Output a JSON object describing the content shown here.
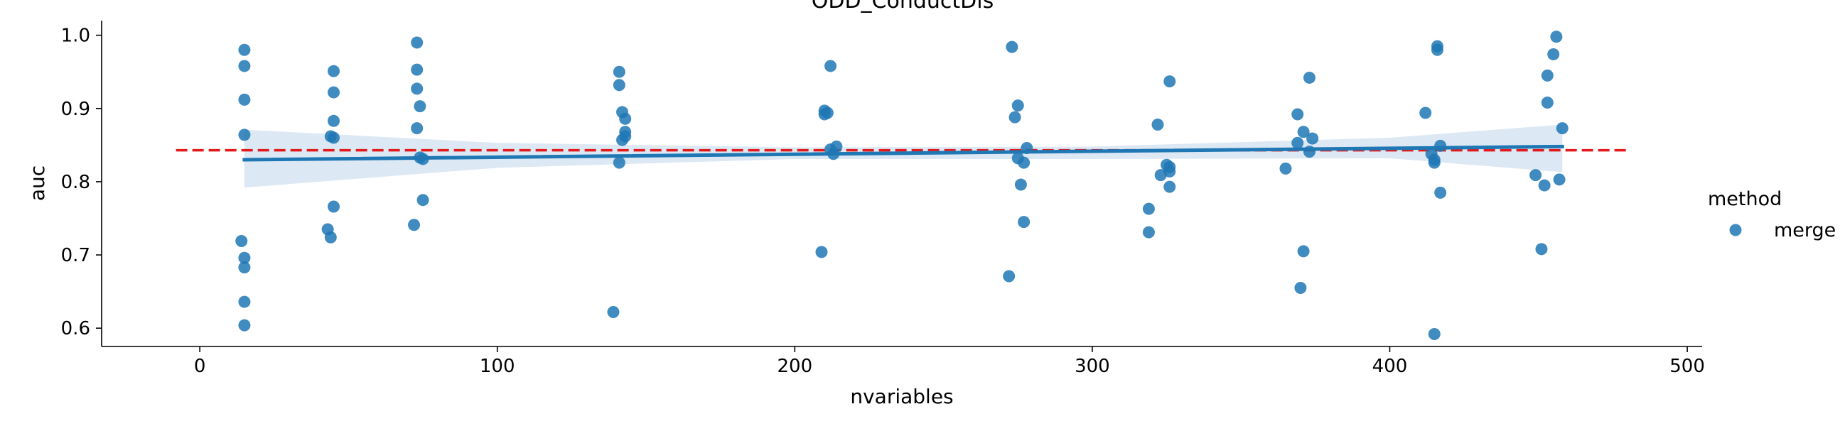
{
  "chart_data": {
    "type": "scatter",
    "title": "ODD_ConductDis",
    "xlabel": "nvariables",
    "ylabel": "auc",
    "xlim": [
      -33,
      505
    ],
    "ylim": [
      0.575,
      1.02
    ],
    "xticks": [
      0,
      100,
      200,
      300,
      400,
      500
    ],
    "yticks": [
      0.6,
      0.7,
      0.8,
      0.9,
      1.0
    ],
    "xtick_labels": [
      "0",
      "100",
      "200",
      "300",
      "400",
      "500"
    ],
    "ytick_labels": [
      "0.6",
      "0.7",
      "0.8",
      "0.9",
      "1.0"
    ],
    "grid": false,
    "legend": {
      "title": "method",
      "placement": "right",
      "entries": [
        "merge"
      ]
    },
    "colors": {
      "points": "#1f77b4",
      "fit": "#1f77b4",
      "band": "#c5d8ec",
      "reference": "#e31a1c"
    },
    "series": [
      {
        "name": "merge",
        "points": [
          [
            15,
            0.98
          ],
          [
            15,
            0.958
          ],
          [
            15,
            0.912
          ],
          [
            15,
            0.864
          ],
          [
            14,
            0.719
          ],
          [
            15,
            0.696
          ],
          [
            15,
            0.683
          ],
          [
            15,
            0.636
          ],
          [
            15,
            0.604
          ],
          [
            45,
            0.951
          ],
          [
            45,
            0.922
          ],
          [
            45,
            0.883
          ],
          [
            44,
            0.862
          ],
          [
            45,
            0.86
          ],
          [
            45,
            0.766
          ],
          [
            43,
            0.735
          ],
          [
            44,
            0.724
          ],
          [
            73,
            0.99
          ],
          [
            73,
            0.953
          ],
          [
            73,
            0.927
          ],
          [
            74,
            0.903
          ],
          [
            73,
            0.873
          ],
          [
            74,
            0.833
          ],
          [
            75,
            0.831
          ],
          [
            75,
            0.775
          ],
          [
            72,
            0.741
          ],
          [
            141,
            0.95
          ],
          [
            141,
            0.932
          ],
          [
            142,
            0.895
          ],
          [
            143,
            0.886
          ],
          [
            143,
            0.868
          ],
          [
            142,
            0.857
          ],
          [
            143,
            0.862
          ],
          [
            141,
            0.826
          ],
          [
            139,
            0.622
          ],
          [
            212,
            0.958
          ],
          [
            210,
            0.897
          ],
          [
            210,
            0.892
          ],
          [
            211,
            0.894
          ],
          [
            214,
            0.848
          ],
          [
            212,
            0.844
          ],
          [
            213,
            0.838
          ],
          [
            209,
            0.704
          ],
          [
            273,
            0.984
          ],
          [
            275,
            0.904
          ],
          [
            274,
            0.888
          ],
          [
            278,
            0.846
          ],
          [
            275,
            0.832
          ],
          [
            277,
            0.826
          ],
          [
            276,
            0.796
          ],
          [
            277,
            0.745
          ],
          [
            272,
            0.671
          ],
          [
            326,
            0.937
          ],
          [
            322,
            0.878
          ],
          [
            325,
            0.823
          ],
          [
            326,
            0.82
          ],
          [
            326,
            0.814
          ],
          [
            323,
            0.809
          ],
          [
            326,
            0.793
          ],
          [
            319,
            0.763
          ],
          [
            319,
            0.731
          ],
          [
            373,
            0.942
          ],
          [
            369,
            0.892
          ],
          [
            371,
            0.868
          ],
          [
            374,
            0.859
          ],
          [
            369,
            0.853
          ],
          [
            373,
            0.841
          ],
          [
            365,
            0.818
          ],
          [
            371,
            0.705
          ],
          [
            370,
            0.655
          ],
          [
            416,
            0.985
          ],
          [
            416,
            0.98
          ],
          [
            412,
            0.894
          ],
          [
            417,
            0.849
          ],
          [
            414,
            0.838
          ],
          [
            415,
            0.83
          ],
          [
            415,
            0.826
          ],
          [
            417,
            0.785
          ],
          [
            415,
            0.592
          ],
          [
            456,
            0.998
          ],
          [
            455,
            0.974
          ],
          [
            453,
            0.945
          ],
          [
            453,
            0.908
          ],
          [
            458,
            0.873
          ],
          [
            449,
            0.809
          ],
          [
            457,
            0.803
          ],
          [
            452,
            0.795
          ],
          [
            451,
            0.708
          ]
        ]
      }
    ],
    "fit_line": {
      "x": [
        15,
        458
      ],
      "y": [
        0.83,
        0.848
      ]
    },
    "confidence_band": {
      "x": [
        15,
        100,
        200,
        300,
        400,
        458
      ],
      "upper": [
        0.871,
        0.853,
        0.847,
        0.848,
        0.86,
        0.878
      ],
      "lower": [
        0.792,
        0.819,
        0.831,
        0.831,
        0.832,
        0.813
      ]
    },
    "reference_line": {
      "y": 0.843,
      "x": [
        -8,
        480
      ]
    }
  }
}
